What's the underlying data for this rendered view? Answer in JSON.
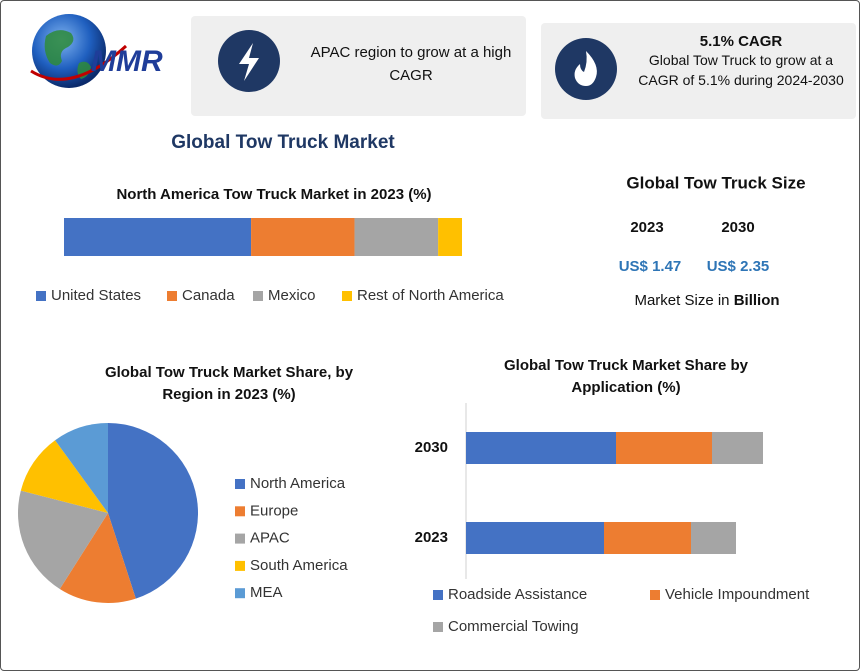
{
  "header": {
    "logo": "MMR"
  },
  "cards": [
    {
      "text": "APAC region to grow at a high CAGR"
    },
    {
      "title": "5.1% CAGR",
      "text": "Global Tow Truck to grow at a CAGR of 5.1% during 2024-2030"
    }
  ],
  "title": "Global Tow Truck Market",
  "market_size": {
    "title": "Global Tow Truck Size",
    "years": [
      "2023",
      "2030"
    ],
    "values": [
      "US$ 1.47",
      "US$ 2.35"
    ],
    "note": "Market Size in",
    "unit": "Billion"
  },
  "chart_data": [
    {
      "type": "bar",
      "orientation": "horizontal",
      "stacked": true,
      "title": "North America Tow Truck Market in 2023 (%)",
      "categories": [
        null
      ],
      "series": [
        {
          "name": "United States",
          "color": "#4472c4",
          "values": [
            47
          ]
        },
        {
          "name": "Canada",
          "color": "#ed7d31",
          "values": [
            26
          ]
        },
        {
          "name": "Mexico",
          "color": "#a5a5a5",
          "values": [
            21
          ]
        },
        {
          "name": "Rest of North America",
          "color": "#ffc000",
          "values": [
            6
          ]
        }
      ],
      "xlim": [
        0,
        100
      ],
      "legend": "bottom"
    },
    {
      "type": "pie",
      "title": "Global Tow Truck Market Share, by Region in 2023 (%)",
      "categories": [
        "North America",
        "Europe",
        "APAC",
        "South America",
        "MEA"
      ],
      "values": [
        45,
        14,
        20,
        11,
        10
      ],
      "colors": [
        "#4472c4",
        "#ed7d31",
        "#a5a5a5",
        "#ffc000",
        "#5b9bd5"
      ],
      "legend": "right"
    },
    {
      "type": "bar",
      "orientation": "horizontal",
      "stacked": true,
      "title": "Global Tow Truck Market Share by Application (%)",
      "categories": [
        "2030",
        "2023"
      ],
      "series": [
        {
          "name": "Roadside Assistance",
          "color": "#4472c4",
          "values": [
            50,
            46
          ]
        },
        {
          "name": "Vehicle Impoundment",
          "color": "#ed7d31",
          "values": [
            32,
            29
          ]
        },
        {
          "name": "Commercial Towing",
          "color": "#a5a5a5",
          "values": [
            17,
            15
          ]
        }
      ],
      "xlim": [
        0,
        130
      ],
      "legend": "bottom"
    }
  ]
}
